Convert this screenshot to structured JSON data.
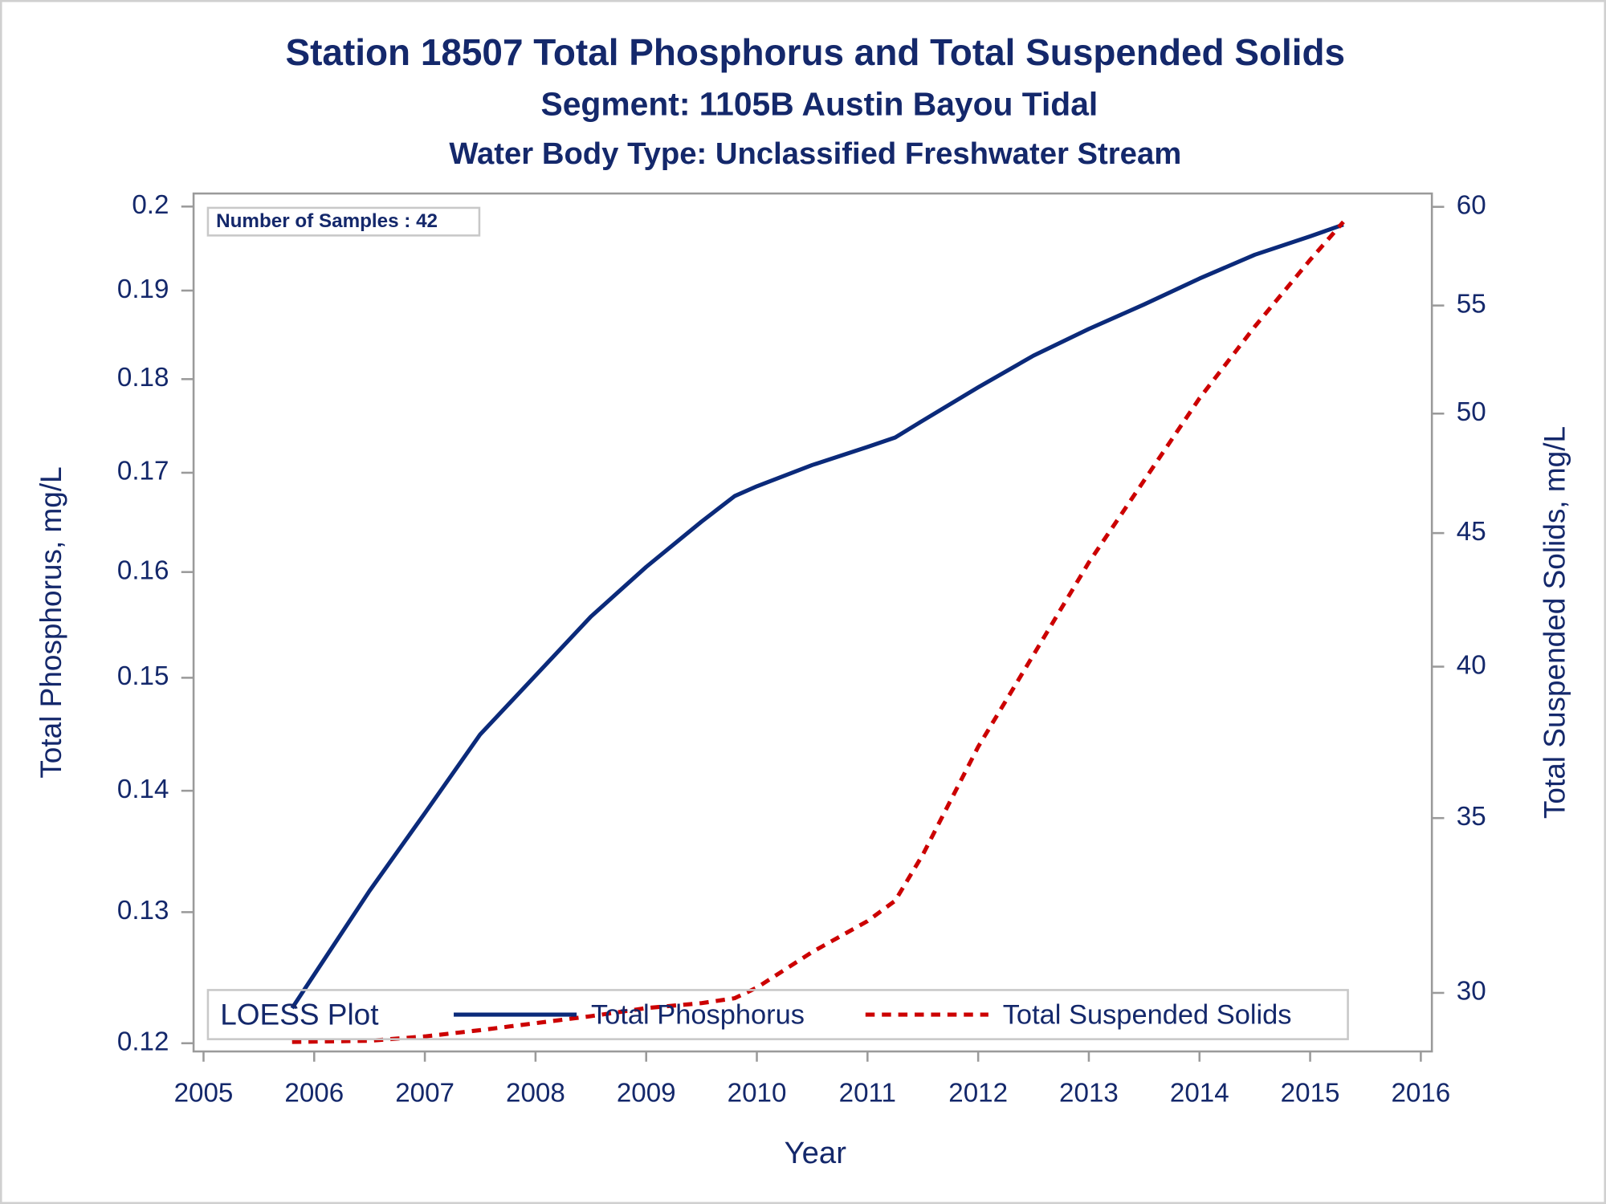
{
  "chart_data": {
    "type": "line",
    "title": "Station 18507  Total Phosphorus and Total Suspended Solids",
    "subtitle": "Segment: 1105B  Austin Bayou Tidal",
    "subtitle2": "Water Body Type: Unclassified Freshwater Stream",
    "annotation": "Number of Samples : 42",
    "x_label": "Year",
    "y_label": "Total Phosphorus, mg/L",
    "y2_label": "Total Suspended Solids, mg/L",
    "x": [
      2005.8,
      2006.5,
      2007,
      2007.5,
      2008,
      2008.5,
      2009,
      2009.5,
      2009.8,
      2010,
      2010.5,
      2011,
      2011.25,
      2011.5,
      2012,
      2012.5,
      2013,
      2013.5,
      2014,
      2014.5,
      2015,
      2015.3
    ],
    "series": [
      {
        "name": "Total Phosphorus",
        "color": "#0b2a7a",
        "line_style": "solid",
        "values": [
          0.1226,
          0.1317,
          0.1381,
          0.1449,
          0.1502,
          0.1557,
          0.1605,
          0.165,
          0.1676,
          0.1686,
          0.1708,
          0.1727,
          0.1737,
          0.1755,
          0.1791,
          0.1826,
          0.1856,
          0.1884,
          0.1914,
          0.1942,
          0.1964,
          0.1978
        ]
      },
      {
        "name": "Total Suspended Solids",
        "color": "#cc0000",
        "line_style": "dash",
        "axis": "y2",
        "values": [
          28.73,
          28.76,
          28.87,
          29.03,
          29.21,
          29.39,
          29.6,
          29.73,
          29.86,
          30.14,
          31.1,
          31.96,
          32.54,
          33.89,
          37.27,
          40.42,
          43.85,
          47.14,
          50.68,
          53.99,
          57.26,
          59.21
        ]
      }
    ],
    "xlim": [
      2004.91,
      2016.1
    ],
    "xticks": [
      2005,
      2006,
      2007,
      2008,
      2009,
      2010,
      2011,
      2012,
      2013,
      2014,
      2015,
      2016
    ],
    "ylim": [
      0.1194,
      0.2016
    ],
    "yticks": [
      0.12,
      0.13,
      0.14,
      0.15,
      0.16,
      0.17,
      0.18,
      0.19,
      0.2
    ],
    "y_log": true,
    "y2lim": [
      28.49,
      60.71
    ],
    "y2ticks": [
      30,
      35,
      40,
      45,
      50,
      55,
      60
    ],
    "y2_log": true,
    "grid": false,
    "legend": {
      "title": "LOESS Plot",
      "position": "bottom"
    }
  }
}
